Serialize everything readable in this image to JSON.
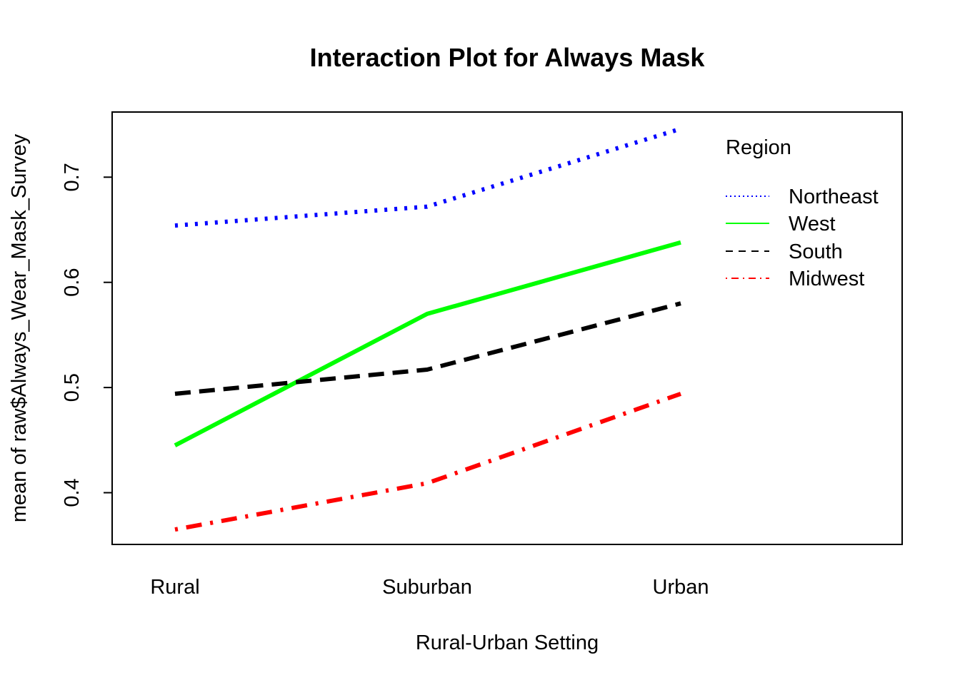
{
  "chart_data": {
    "type": "line",
    "title": "Interaction Plot for Always Mask",
    "xlabel": "Rural-Urban Setting",
    "ylabel": "mean of  raw$Always_Wear_Mask_Survey",
    "categories": [
      "Rural",
      "Suburban",
      "Urban"
    ],
    "yticks": [
      "0.4",
      "0.5",
      "0.6",
      "0.7"
    ],
    "ylim": [
      0.35,
      0.76
    ],
    "legend": {
      "title": "Region",
      "position": "top-right"
    },
    "series": [
      {
        "name": "Northeast",
        "values": [
          0.654,
          0.672,
          0.746
        ],
        "color": "#0000ff",
        "dash": "dotted"
      },
      {
        "name": "West",
        "values": [
          0.445,
          0.57,
          0.638
        ],
        "color": "#00ff00",
        "dash": "solid"
      },
      {
        "name": "South",
        "values": [
          0.494,
          0.517,
          0.58
        ],
        "color": "#000000",
        "dash": "dashed"
      },
      {
        "name": "Midwest",
        "values": [
          0.365,
          0.409,
          0.494
        ],
        "color": "#ff0000",
        "dash": "dotdash"
      }
    ]
  }
}
